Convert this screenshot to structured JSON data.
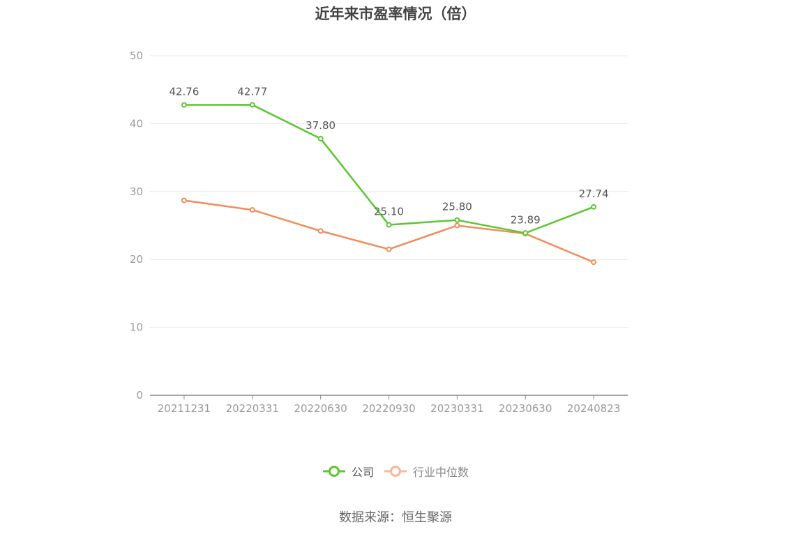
{
  "chart_data": {
    "type": "line",
    "title": "近年来市盈率情况（倍）",
    "categories": [
      "20211231",
      "20220331",
      "20220630",
      "20220930",
      "20230331",
      "20230630",
      "20240823"
    ],
    "series": [
      {
        "name": "公司",
        "color": "#5bc72e",
        "values": [
          42.76,
          42.77,
          37.8,
          25.1,
          25.8,
          23.89,
          27.74
        ],
        "labels": [
          "42.76",
          "42.77",
          "37.80",
          "25.10",
          "25.80",
          "23.89",
          "27.74"
        ]
      },
      {
        "name": "行业中位数",
        "color": "#f28c5a",
        "values": [
          28.7,
          27.3,
          24.2,
          21.5,
          25.0,
          23.8,
          19.6
        ]
      }
    ],
    "xlabel": "",
    "ylabel": "",
    "ylim": [
      0,
      50
    ],
    "yticks": [
      "0",
      "10",
      "20",
      "30",
      "40",
      "50"
    ],
    "grid": true,
    "legend_position": "bottom"
  },
  "legend": [
    {
      "label": "公司",
      "color": "#5bc72e",
      "text_color": "#555555"
    },
    {
      "label": "行业中位数",
      "color": "#f9b79a",
      "text_color": "#888888"
    }
  ],
  "source": "数据来源：恒生聚源"
}
